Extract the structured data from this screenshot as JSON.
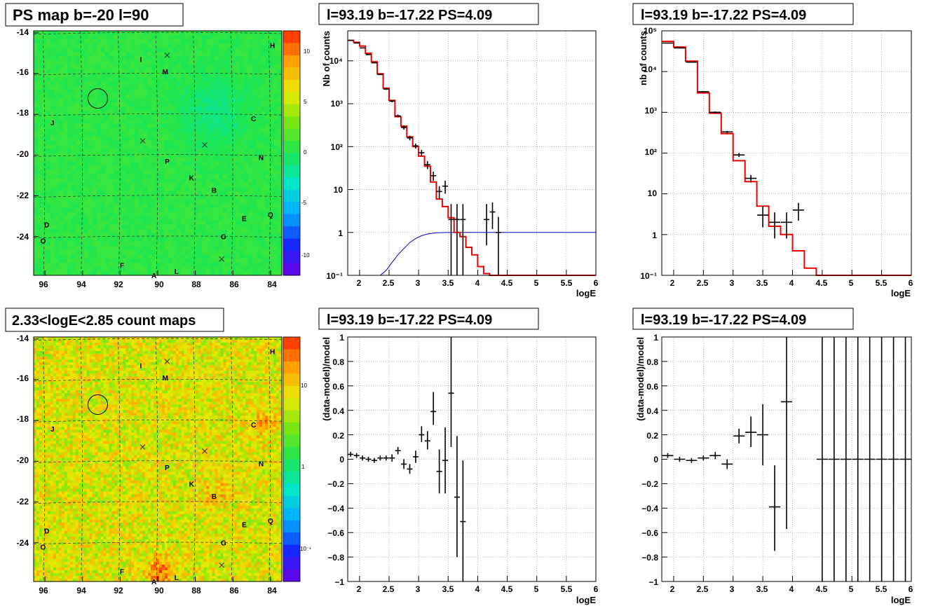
{
  "panels": [
    {
      "id": "ps-map",
      "title": "PS map b=-20 l=90",
      "kind": "skymap",
      "palette": "green",
      "x_ticks": [
        "96",
        "94",
        "92",
        "90",
        "88",
        "86",
        "84"
      ],
      "y_ticks": [
        "-14",
        "-16",
        "-18",
        "-20",
        "-22",
        "-24"
      ],
      "colorbar_ticks": [
        "10",
        "5",
        "0",
        "-5",
        "-10"
      ],
      "letters": [
        "I",
        "M",
        "H",
        "J",
        "C",
        "P",
        "N",
        "K",
        "B",
        "D",
        "Q",
        "E",
        "O",
        "G",
        "F",
        "A",
        "L"
      ]
    },
    {
      "id": "count-map",
      "title": "2.33<logE<2.85 count maps",
      "kind": "skymap",
      "palette": "heat",
      "x_ticks": [
        "96",
        "94",
        "92",
        "90",
        "88",
        "86",
        "84"
      ],
      "y_ticks": [
        "-14",
        "-16",
        "-18",
        "-20",
        "-22",
        "-24"
      ],
      "colorbar_ticks": [
        "10",
        "1",
        "10⁻¹"
      ],
      "letters": [
        "I",
        "M",
        "H",
        "J",
        "C",
        "P",
        "N",
        "K",
        "B",
        "D",
        "Q",
        "E",
        "O",
        "G",
        "F",
        "A",
        "L"
      ]
    },
    {
      "id": "spectrum-fine",
      "title": "l=93.19 b=-17.22 PS=4.09",
      "kind": "spectrum",
      "ylabel": "Nb of counts",
      "xlabel": "logE",
      "x_ticks": [
        "2",
        "2.5",
        "3",
        "3.5",
        "4",
        "4.5",
        "5",
        "5.5",
        "6"
      ],
      "y_ticks": [
        "10⁻¹",
        "1",
        "10",
        "10²",
        "10³",
        "10⁴"
      ]
    },
    {
      "id": "spectrum-coarse",
      "title": "l=93.19 b=-17.22 PS=4.09",
      "kind": "spectrum",
      "ylabel": "nb of counts",
      "xlabel": "logE",
      "x_ticks": [
        "2",
        "2.5",
        "3",
        "3.5",
        "4",
        "4.5",
        "5",
        "5.5",
        "6"
      ],
      "y_ticks": [
        "10⁻¹",
        "1",
        "10",
        "10²",
        "10³",
        "10⁴",
        "10⁵"
      ]
    },
    {
      "id": "residual-fine",
      "title": "l=93.19 b=-17.22 PS=4.09",
      "kind": "residual",
      "ylabel": "(data-model)/model",
      "xlabel": "logE",
      "x_ticks": [
        "2",
        "2.5",
        "3",
        "3.5",
        "4",
        "4.5",
        "5",
        "5.5",
        "6"
      ],
      "y_ticks": [
        "1",
        "0.8",
        "0.6",
        "0.4",
        "0.2",
        "0",
        "−0.2",
        "−0.4",
        "−0.6",
        "−0.8",
        "−1"
      ]
    },
    {
      "id": "residual-coarse",
      "title": "l=93.19 b=-17.22 PS=4.09",
      "kind": "residual",
      "ylabel": "(data-model)/model",
      "xlabel": "logE",
      "x_ticks": [
        "2",
        "2.5",
        "3",
        "3.5",
        "4",
        "4.5",
        "5",
        "5.5",
        "6"
      ],
      "y_ticks": [
        "1",
        "0.8",
        "0.6",
        "0.4",
        "0.2",
        "0",
        "−0.2",
        "−0.4",
        "−0.6",
        "−0.8",
        "−1"
      ]
    }
  ],
  "chart_data": [
    {
      "type": "heatmap",
      "title": "PS map b=-20 l=90",
      "xlabel": "",
      "ylabel": "",
      "xlim": [
        96.6,
        83.4
      ],
      "ylim": [
        -25.9,
        -13.9
      ],
      "zlim": [
        -12,
        12
      ],
      "source_circle": {
        "l": 93.19,
        "b": -17.22
      },
      "crosses": [
        [
          89.5,
          -15.1
        ],
        [
          90.8,
          -19.3
        ],
        [
          87.5,
          -19.5
        ],
        [
          86.6,
          -25.1
        ]
      ],
      "labels": [
        {
          "text": "I",
          "l": 90.9,
          "b": -15.3
        },
        {
          "text": "M",
          "l": 89.6,
          "b": -15.9
        },
        {
          "text": "H",
          "l": 83.9,
          "b": -14.6
        },
        {
          "text": "J",
          "l": 95.6,
          "b": -18.4
        },
        {
          "text": "C",
          "l": 84.9,
          "b": -18.2
        },
        {
          "text": "P",
          "l": 89.5,
          "b": -20.3
        },
        {
          "text": "N",
          "l": 84.5,
          "b": -20.1
        },
        {
          "text": "K",
          "l": 88.2,
          "b": -21.1
        },
        {
          "text": "B",
          "l": 87.0,
          "b": -21.7
        },
        {
          "text": "D",
          "l": 95.9,
          "b": -23.4
        },
        {
          "text": "Q",
          "l": 84.0,
          "b": -22.9
        },
        {
          "text": "E",
          "l": 85.4,
          "b": -23.1
        },
        {
          "text": "O",
          "l": 96.1,
          "b": -24.2
        },
        {
          "text": "G",
          "l": 86.5,
          "b": -24.0
        },
        {
          "text": "F",
          "l": 91.9,
          "b": -25.4
        },
        {
          "text": "A",
          "l": 90.2,
          "b": -25.9
        },
        {
          "text": "L",
          "l": 89.0,
          "b": -25.7
        }
      ]
    },
    {
      "type": "heatmap",
      "title": "2.33<logE<2.85 count maps",
      "xlabel": "",
      "ylabel": "",
      "xlim": [
        96.6,
        83.4
      ],
      "ylim": [
        -25.9,
        -13.9
      ],
      "zscale": "log",
      "zlim": [
        0.05,
        30
      ],
      "source_circle": {
        "l": 93.19,
        "b": -17.22
      },
      "crosses": [
        [
          89.5,
          -15.1
        ],
        [
          90.8,
          -19.3
        ],
        [
          87.5,
          -19.5
        ],
        [
          86.6,
          -25.1
        ]
      ],
      "labels": [
        {
          "text": "I",
          "l": 90.9,
          "b": -15.3
        },
        {
          "text": "M",
          "l": 89.6,
          "b": -15.9
        },
        {
          "text": "H",
          "l": 83.9,
          "b": -14.6
        },
        {
          "text": "J",
          "l": 95.6,
          "b": -18.4
        },
        {
          "text": "C",
          "l": 84.9,
          "b": -18.2
        },
        {
          "text": "P",
          "l": 89.5,
          "b": -20.3
        },
        {
          "text": "N",
          "l": 84.5,
          "b": -20.1
        },
        {
          "text": "K",
          "l": 88.2,
          "b": -21.1
        },
        {
          "text": "B",
          "l": 87.0,
          "b": -21.7
        },
        {
          "text": "D",
          "l": 95.9,
          "b": -23.4
        },
        {
          "text": "Q",
          "l": 84.0,
          "b": -22.9
        },
        {
          "text": "E",
          "l": 85.4,
          "b": -23.1
        },
        {
          "text": "O",
          "l": 96.1,
          "b": -24.2
        },
        {
          "text": "G",
          "l": 86.5,
          "b": -24.0
        },
        {
          "text": "F",
          "l": 91.9,
          "b": -25.4
        },
        {
          "text": "A",
          "l": 90.2,
          "b": -25.9
        },
        {
          "text": "L",
          "l": 89.0,
          "b": -25.7
        }
      ]
    },
    {
      "type": "line",
      "title": "l=93.19 b=-17.22 PS=4.09",
      "xlabel": "logE",
      "ylabel": "Nb of counts",
      "xlim": [
        1.8,
        6
      ],
      "ylim": [
        0.1,
        50000
      ],
      "yscale": "log",
      "grid": true,
      "model": {
        "edges": [
          1.8,
          1.9,
          2.0,
          2.1,
          2.2,
          2.3,
          2.4,
          2.5,
          2.6,
          2.7,
          2.8,
          2.9,
          3.0,
          3.1,
          3.2,
          3.3,
          3.4,
          3.5,
          3.6,
          3.7,
          3.8,
          3.9,
          4.0,
          4.1,
          4.2,
          4.3,
          6.0
        ],
        "values": [
          30000,
          27000,
          22000,
          15000,
          9500,
          5000,
          2300,
          1200,
          500,
          300,
          170,
          100,
          60,
          35,
          15,
          6,
          4,
          2.2,
          1.0,
          0.8,
          0.45,
          0.3,
          0.16,
          0.11,
          0.1,
          0.1
        ]
      },
      "efficiency": {
        "x": [
          1.8,
          2.2,
          2.35,
          2.45,
          2.55,
          2.65,
          2.75,
          2.85,
          2.95,
          3.05,
          3.15,
          3.3,
          3.5,
          6.0
        ],
        "y": [
          0.1,
          0.1,
          0.1,
          0.13,
          0.2,
          0.3,
          0.42,
          0.58,
          0.72,
          0.84,
          0.92,
          0.98,
          1.0,
          1.0
        ]
      },
      "data": [
        {
          "x": 1.85,
          "y": 30000,
          "lo": 29500,
          "hi": 30500
        },
        {
          "x": 1.95,
          "y": 26000,
          "lo": 25500,
          "hi": 26500
        },
        {
          "x": 2.05,
          "y": 20000,
          "lo": 19600,
          "hi": 20400
        },
        {
          "x": 2.15,
          "y": 14000,
          "lo": 13700,
          "hi": 14300
        },
        {
          "x": 2.25,
          "y": 9000,
          "lo": 8800,
          "hi": 9200
        },
        {
          "x": 2.35,
          "y": 4800,
          "lo": 4650,
          "hi": 4950
        },
        {
          "x": 2.45,
          "y": 2200,
          "lo": 2100,
          "hi": 2300
        },
        {
          "x": 2.55,
          "y": 1150,
          "lo": 1080,
          "hi": 1220
        },
        {
          "x": 2.65,
          "y": 520,
          "lo": 480,
          "hi": 560
        },
        {
          "x": 2.75,
          "y": 280,
          "lo": 250,
          "hi": 310
        },
        {
          "x": 2.85,
          "y": 160,
          "lo": 140,
          "hi": 180
        },
        {
          "x": 2.95,
          "y": 104,
          "lo": 90,
          "hi": 118
        },
        {
          "x": 3.05,
          "y": 72,
          "lo": 60,
          "hi": 84
        },
        {
          "x": 3.15,
          "y": 38,
          "lo": 30,
          "hi": 46
        },
        {
          "x": 3.25,
          "y": 21,
          "lo": 16,
          "hi": 26
        },
        {
          "x": 3.35,
          "y": 9,
          "lo": 6,
          "hi": 12
        },
        {
          "x": 3.45,
          "y": 12,
          "lo": 8,
          "hi": 16
        },
        {
          "x": 3.55,
          "y": 2,
          "lo": 0.1,
          "hi": 4.6
        },
        {
          "x": 3.65,
          "y": 2,
          "lo": 0.1,
          "hi": 4.6
        },
        {
          "x": 3.75,
          "y": 2,
          "lo": 0.1,
          "hi": 4.6
        },
        {
          "x": 4.15,
          "y": 2,
          "lo": 0.5,
          "hi": 4.6
        },
        {
          "x": 4.25,
          "y": 3,
          "lo": 1.2,
          "hi": 5.0
        },
        {
          "x": 4.35,
          "y": 1,
          "lo": 0.1,
          "hi": 2.3
        }
      ]
    },
    {
      "type": "line",
      "title": "l=93.19 b=-17.22 PS=4.09",
      "xlabel": "logE",
      "ylabel": "nb of counts",
      "xlim": [
        1.8,
        6
      ],
      "ylim": [
        0.1,
        100000
      ],
      "yscale": "log",
      "grid": true,
      "model": {
        "edges": [
          1.8,
          2.0,
          2.2,
          2.4,
          2.6,
          2.8,
          3.0,
          3.2,
          3.4,
          3.6,
          3.8,
          4.0,
          4.2,
          4.4,
          6.0
        ],
        "values": [
          55000,
          40000,
          18000,
          3000,
          950,
          300,
          65,
          20,
          5,
          1.6,
          1.0,
          0.4,
          0.15,
          0.1
        ]
      },
      "data": [
        {
          "x": 1.9,
          "y": 50000,
          "lo": 49500,
          "hi": 50500
        },
        {
          "x": 2.1,
          "y": 38000,
          "lo": 37600,
          "hi": 38400
        },
        {
          "x": 2.3,
          "y": 17000,
          "lo": 16700,
          "hi": 17300
        },
        {
          "x": 2.5,
          "y": 3200,
          "lo": 3100,
          "hi": 3300
        },
        {
          "x": 2.7,
          "y": 1000,
          "lo": 950,
          "hi": 1050
        },
        {
          "x": 2.9,
          "y": 330,
          "lo": 310,
          "hi": 350
        },
        {
          "x": 3.1,
          "y": 90,
          "lo": 80,
          "hi": 100
        },
        {
          "x": 3.3,
          "y": 24,
          "lo": 19,
          "hi": 29
        },
        {
          "x": 3.5,
          "y": 3,
          "lo": 1.5,
          "hi": 5
        },
        {
          "x": 3.7,
          "y": 2,
          "lo": 0.8,
          "hi": 3.5
        },
        {
          "x": 3.9,
          "y": 2,
          "lo": 0.8,
          "hi": 3.5
        },
        {
          "x": 4.1,
          "y": 4,
          "lo": 2.2,
          "hi": 6
        }
      ]
    },
    {
      "type": "scatter",
      "title": "l=93.19 b=-17.22 PS=4.09",
      "xlabel": "logE",
      "ylabel": "(data-model)/model",
      "xlim": [
        1.8,
        6
      ],
      "ylim": [
        -1,
        1
      ],
      "grid": true,
      "data": [
        {
          "x": 1.85,
          "y": 0.04,
          "lo": 0.02,
          "hi": 0.06
        },
        {
          "x": 1.95,
          "y": 0.03,
          "lo": 0.01,
          "hi": 0.05
        },
        {
          "x": 2.05,
          "y": 0.01,
          "lo": -0.01,
          "hi": 0.03
        },
        {
          "x": 2.15,
          "y": 0.0,
          "lo": -0.02,
          "hi": 0.02
        },
        {
          "x": 2.25,
          "y": -0.01,
          "lo": -0.03,
          "hi": 0.01
        },
        {
          "x": 2.35,
          "y": 0.01,
          "lo": -0.01,
          "hi": 0.03
        },
        {
          "x": 2.45,
          "y": 0.01,
          "lo": -0.01,
          "hi": 0.03
        },
        {
          "x": 2.55,
          "y": 0.01,
          "lo": -0.02,
          "hi": 0.04
        },
        {
          "x": 2.65,
          "y": 0.07,
          "lo": 0.04,
          "hi": 0.1
        },
        {
          "x": 2.75,
          "y": -0.04,
          "lo": -0.08,
          "hi": 0.0
        },
        {
          "x": 2.85,
          "y": -0.08,
          "lo": -0.12,
          "hi": -0.04
        },
        {
          "x": 2.95,
          "y": 0.02,
          "lo": -0.03,
          "hi": 0.07
        },
        {
          "x": 3.05,
          "y": 0.2,
          "lo": 0.14,
          "hi": 0.27
        },
        {
          "x": 3.15,
          "y": 0.15,
          "lo": 0.08,
          "hi": 0.23
        },
        {
          "x": 3.25,
          "y": 0.39,
          "lo": 0.28,
          "hi": 0.55
        },
        {
          "x": 3.35,
          "y": -0.1,
          "lo": -0.28,
          "hi": 0.08
        },
        {
          "x": 3.45,
          "y": -0.01,
          "lo": -0.28,
          "hi": 0.26
        },
        {
          "x": 3.55,
          "y": 0.54,
          "lo": 0.1,
          "hi": 1.0
        },
        {
          "x": 3.65,
          "y": -0.31,
          "lo": -0.8,
          "hi": 0.19
        },
        {
          "x": 3.75,
          "y": -0.51,
          "lo": -1.0,
          "hi": -0.01
        }
      ]
    },
    {
      "type": "scatter",
      "title": "l=93.19 b=-17.22 PS=4.09",
      "xlabel": "logE",
      "ylabel": "(data-model)/model",
      "xlim": [
        1.8,
        6
      ],
      "ylim": [
        -1,
        1
      ],
      "grid": true,
      "data": [
        {
          "x": 1.9,
          "y": 0.03,
          "lo": 0.01,
          "hi": 0.05
        },
        {
          "x": 2.1,
          "y": 0.0,
          "lo": -0.02,
          "hi": 0.02
        },
        {
          "x": 2.3,
          "y": -0.01,
          "lo": -0.03,
          "hi": 0.01
        },
        {
          "x": 2.5,
          "y": 0.01,
          "lo": -0.01,
          "hi": 0.03
        },
        {
          "x": 2.7,
          "y": 0.03,
          "lo": 0.0,
          "hi": 0.06
        },
        {
          "x": 2.9,
          "y": -0.04,
          "lo": -0.08,
          "hi": 0.0
        },
        {
          "x": 3.1,
          "y": 0.19,
          "lo": 0.13,
          "hi": 0.25
        },
        {
          "x": 3.3,
          "y": 0.22,
          "lo": 0.1,
          "hi": 0.35
        },
        {
          "x": 3.5,
          "y": 0.2,
          "lo": -0.05,
          "hi": 0.45
        },
        {
          "x": 3.7,
          "y": -0.39,
          "lo": -0.75,
          "hi": -0.05
        },
        {
          "x": 3.9,
          "y": 0.47,
          "lo": -0.57,
          "hi": 1.0
        },
        {
          "x": 4.5,
          "y": 0,
          "lo": -1,
          "hi": 1
        },
        {
          "x": 4.7,
          "y": 0,
          "lo": -1,
          "hi": 1
        },
        {
          "x": 4.9,
          "y": 0,
          "lo": -1,
          "hi": 1
        },
        {
          "x": 5.1,
          "y": 0,
          "lo": -1,
          "hi": 1
        },
        {
          "x": 5.3,
          "y": 0,
          "lo": -1,
          "hi": 1
        },
        {
          "x": 5.5,
          "y": 0,
          "lo": -1,
          "hi": 1
        },
        {
          "x": 5.7,
          "y": 0,
          "lo": -1,
          "hi": 1
        },
        {
          "x": 5.9,
          "y": 0,
          "lo": -1,
          "hi": 1
        }
      ]
    }
  ]
}
